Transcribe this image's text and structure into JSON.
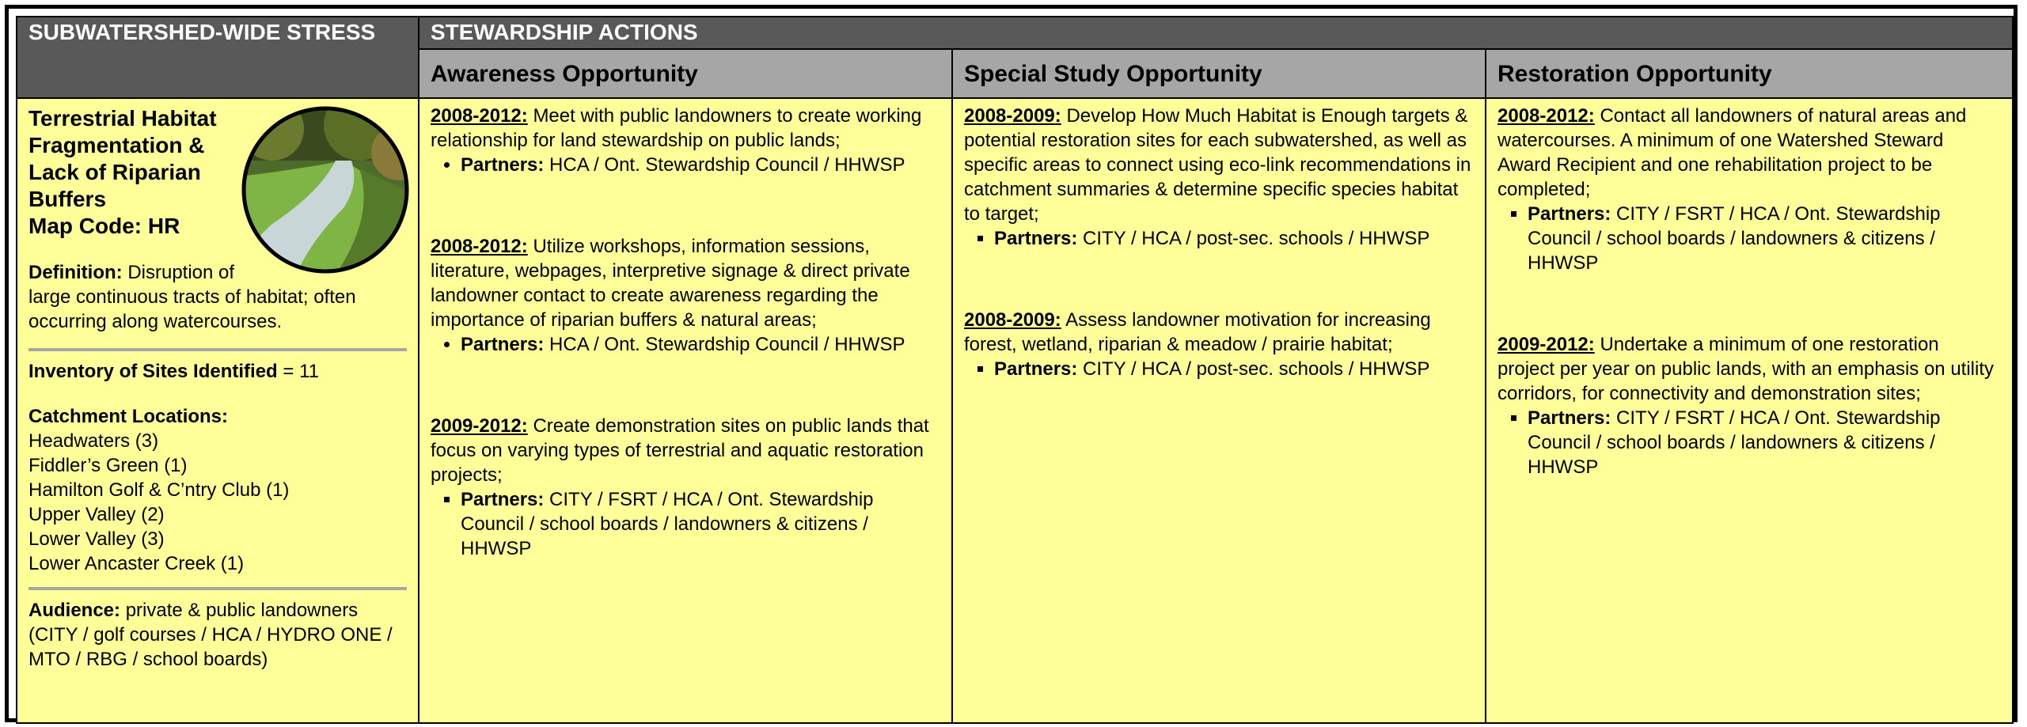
{
  "header": {
    "stress_title": "SUBWATERSHED-WIDE STRESS",
    "actions_title": "STEWARDSHIP ACTIONS",
    "columns": [
      "Awareness Opportunity",
      "Special Study Opportunity",
      "Restoration Opportunity"
    ]
  },
  "stress": {
    "name": "Terrestrial Habitat Fragmentation & Lack of Riparian Buffers",
    "map_code": "Map Code: HR",
    "definition_label": "Definition:",
    "definition": "Disruption of large continuous tracts of habitat; often occurring along watercourses.",
    "inventory_label": "Inventory of Sites Identified",
    "inventory": "= 11",
    "catchment_label": "Catchment Locations:",
    "catchments": [
      "Headwaters (3)",
      "Fiddler’s Green (1)",
      "Hamilton Golf & C’ntry Club (1)",
      "Upper Valley (2)",
      "Lower Valley (3)",
      "Lower Ancaster Creek (1)"
    ],
    "audience_label": "Audience:",
    "audience": "private & public landowners (CITY / golf courses / HCA / HYDRO ONE / MTO / RBG / school boards)"
  },
  "actions": [
    [
      {
        "date": "2008-2012:",
        "text": "Meet with public landowners to create working relationship for land stewardship on public lands;",
        "partners_label": "Partners:",
        "partners": "HCA / Ont. Stewardship Council / HHWSP"
      },
      {
        "date": "2008-2012:",
        "text": "Utilize workshops, information sessions, literature, webpages, interpretive signage & direct private landowner contact to create awareness regarding the importance of riparian buffers & natural areas;",
        "partners_label": "Partners:",
        "partners": "HCA / Ont. Stewardship Council / HHWSP"
      },
      {
        "date": "2009-2012:",
        "text": "Create demonstration sites on public lands that focus on varying types of terrestrial and aquatic restoration projects;",
        "partners_label": "Partners:",
        "partners": "CITY / FSRT / HCA / Ont. Stewardship Council / school boards / landowners & citizens / HHWSP"
      }
    ],
    [
      {
        "date": "2008-2009:",
        "text": "Develop How Much Habitat is Enough targets & potential restoration sites for each subwatershed, as well as specific areas to connect using eco-link recommendations in catchment summaries & determine specific species habitat to target;",
        "partners_label": "Partners:",
        "partners": "CITY / HCA / post-sec. schools / HHWSP"
      },
      {
        "date": "2008-2009:",
        "text": "Assess landowner motivation for increasing forest, wetland, riparian & meadow / prairie habitat;",
        "partners_label": "Partners:",
        "partners": "CITY / HCA / post-sec. schools / HHWSP"
      }
    ],
    [
      {
        "date": "2008-2012:",
        "text": "Contact all landowners of natural areas and watercourses. A minimum of one Watershed Steward Award Recipient and one rehabilitation project to be completed;",
        "partners_label": "Partners:",
        "partners": "CITY / FSRT / HCA / Ont. Stewardship Council / school boards / landowners & citizens / HHWSP"
      },
      {
        "date": "2009-2012:",
        "text": "Undertake a minimum of one restoration project per year on public lands, with an emphasis on utility corridors, for connectivity and demonstration sites;",
        "partners_label": "Partners:",
        "partners": "CITY / FSRT / HCA / Ont. Stewardship Council / school boards / landowners & citizens / HHWSP"
      }
    ]
  ]
}
